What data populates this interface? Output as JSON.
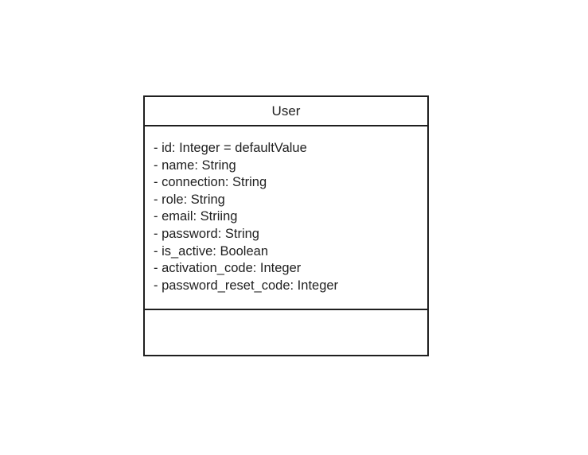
{
  "class": {
    "name": "User",
    "attributes": [
      "- id: Integer = defaultValue",
      "- name: String",
      "- connection: String",
      "- role: String",
      "- email: Striing",
      "- password: String",
      "- is_active: Boolean",
      "- activation_code: Integer",
      "- password_reset_code: Integer"
    ],
    "operations": []
  }
}
